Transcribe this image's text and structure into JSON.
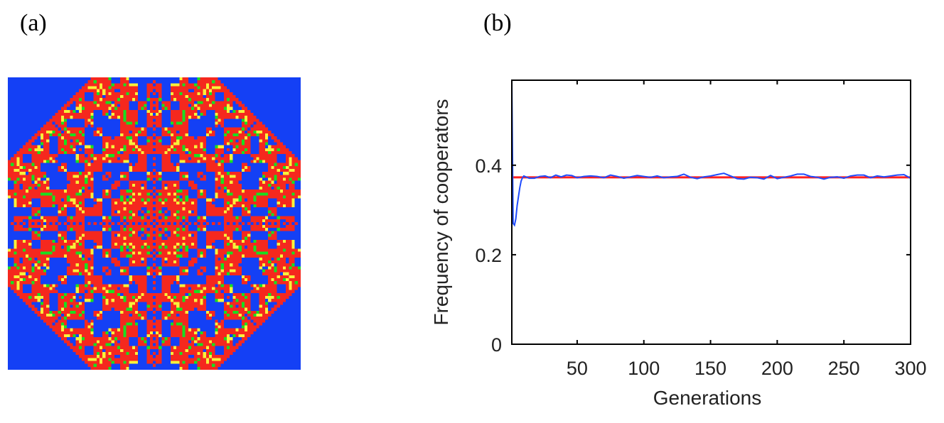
{
  "panels": {
    "a_label": "(a)",
    "b_label": "(b)"
  },
  "lattice": {
    "colors": {
      "background": "#1440F5",
      "red": "#F5281E",
      "yellow": "#F8F23A",
      "green": "#18E020",
      "blue": "#1440F5"
    }
  },
  "chart_data": {
    "type": "line",
    "xlabel": "Generations",
    "ylabel": "Frequency of cooperators",
    "xlim": [
      1,
      300
    ],
    "ylim": [
      0,
      0.59
    ],
    "xticks": [
      50,
      100,
      150,
      200,
      250,
      300
    ],
    "yticks": [
      0,
      0.2,
      0.4
    ],
    "ytick_labels": [
      "0",
      "0.2",
      "0.4"
    ],
    "grid": false,
    "legend": "none",
    "series": [
      {
        "color": "#1E4BFF",
        "x": [
          1,
          2,
          3,
          4,
          5,
          6,
          7,
          8,
          9,
          10,
          14,
          18,
          22,
          26,
          30,
          34,
          38,
          42,
          46,
          50,
          55,
          60,
          65,
          70,
          75,
          80,
          85,
          90,
          95,
          100,
          105,
          110,
          115,
          120,
          125,
          130,
          135,
          140,
          145,
          150,
          155,
          160,
          165,
          170,
          175,
          180,
          185,
          190,
          195,
          200,
          205,
          210,
          215,
          220,
          225,
          230,
          235,
          240,
          245,
          250,
          255,
          260,
          265,
          270,
          275,
          280,
          285,
          290,
          295,
          300
        ],
        "y": [
          0.59,
          0.27,
          0.266,
          0.28,
          0.31,
          0.33,
          0.35,
          0.365,
          0.372,
          0.376,
          0.371,
          0.371,
          0.375,
          0.376,
          0.372,
          0.378,
          0.374,
          0.378,
          0.377,
          0.372,
          0.375,
          0.376,
          0.375,
          0.372,
          0.378,
          0.375,
          0.371,
          0.374,
          0.377,
          0.375,
          0.373,
          0.376,
          0.372,
          0.374,
          0.375,
          0.38,
          0.373,
          0.37,
          0.374,
          0.376,
          0.379,
          0.382,
          0.376,
          0.37,
          0.369,
          0.373,
          0.372,
          0.369,
          0.377,
          0.37,
          0.373,
          0.376,
          0.38,
          0.38,
          0.375,
          0.373,
          0.369,
          0.373,
          0.374,
          0.371,
          0.376,
          0.378,
          0.378,
          0.372,
          0.376,
          0.374,
          0.376,
          0.378,
          0.379,
          0.371
        ]
      },
      {
        "color": "#FF2020",
        "x": [
          1,
          300
        ],
        "y": [
          0.373,
          0.373
        ]
      }
    ]
  }
}
